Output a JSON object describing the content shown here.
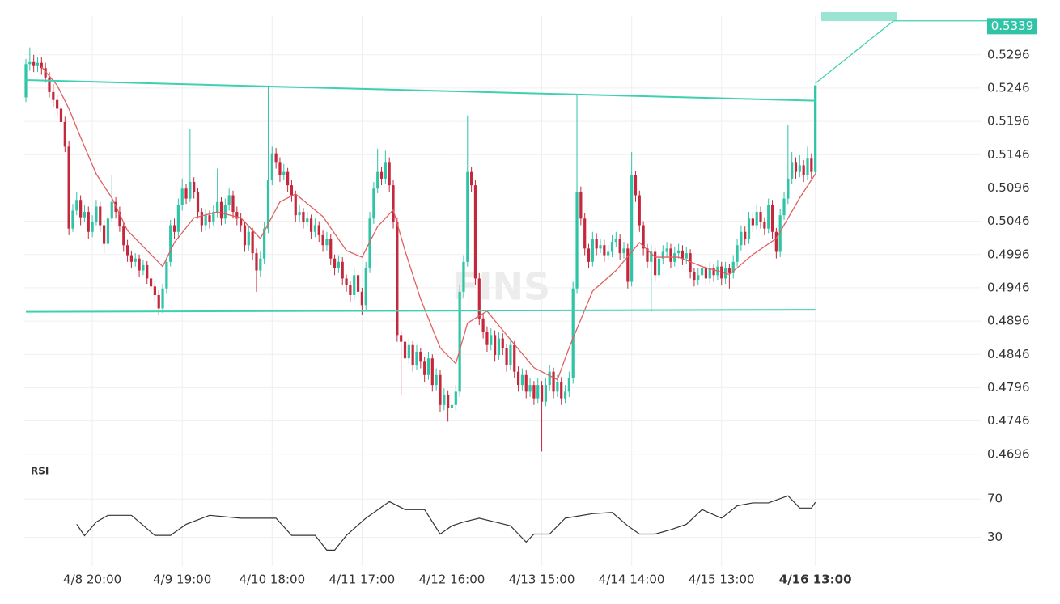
{
  "chart_data": {
    "type": "candlestick",
    "watermark": "FINS",
    "up_color": "#2ec4a5",
    "down_color": "#c5283d",
    "ylim": [
      0.4686,
      0.5354
    ],
    "yticks": [
      0.4696,
      0.4746,
      0.4796,
      0.4846,
      0.4896,
      0.4946,
      0.4996,
      0.5046,
      0.5096,
      0.5146,
      0.5196,
      0.5246,
      0.5296
    ],
    "grid": true,
    "last_price": 0.5339,
    "categories": [
      null,
      null,
      null,
      null,
      null,
      null,
      null,
      null,
      null,
      null,
      null,
      null,
      null,
      null,
      null,
      null,
      null,
      "4/8 20:00",
      null,
      null,
      null,
      null,
      null,
      null,
      null,
      null,
      null,
      null,
      null,
      null,
      null,
      null,
      null,
      null,
      null,
      null,
      null,
      null,
      null,
      null,
      "4/9 19:00",
      null,
      null,
      null,
      null,
      null,
      null,
      null,
      null,
      null,
      null,
      null,
      null,
      null,
      null,
      null,
      null,
      null,
      null,
      null,
      null,
      null,
      null,
      "4/10 18:00",
      null,
      null,
      null,
      null,
      null,
      null,
      null,
      null,
      null,
      null,
      null,
      null,
      null,
      null,
      null,
      null,
      null,
      null,
      null,
      null,
      null,
      null,
      "4/11 17:00",
      null,
      null,
      null,
      null,
      null,
      null,
      null,
      null,
      null,
      null,
      null,
      null,
      null,
      null,
      null,
      null,
      null,
      null,
      null,
      null,
      null,
      null,
      "4/12 16:00",
      null,
      null,
      null,
      null,
      null,
      null,
      null,
      null,
      null,
      null,
      null,
      null,
      null,
      null,
      null,
      null,
      null,
      null,
      null,
      null,
      null,
      null,
      "4/13 15:00",
      null,
      null,
      null,
      null,
      null,
      null,
      null,
      null,
      null,
      null,
      null,
      null,
      null,
      null,
      null,
      null,
      null,
      null,
      null,
      null,
      null,
      null,
      "4/14 14:00",
      null,
      null,
      null,
      null,
      null,
      null,
      null,
      null,
      null,
      null,
      null,
      null,
      null,
      null,
      null,
      null,
      null,
      null,
      null,
      null,
      null,
      null,
      "4/15 13:00",
      null,
      null,
      null,
      null,
      null,
      null,
      null,
      null,
      null,
      null,
      null,
      null,
      null,
      null,
      null,
      null,
      null,
      null,
      null,
      null,
      null,
      null,
      null,
      "4/16 13:00"
    ],
    "open": [
      0.5232,
      0.5282,
      0.5285,
      0.5279,
      0.5284,
      0.5276,
      0.5262,
      0.524,
      0.5228,
      0.5215,
      0.5195,
      0.5158,
      0.5035,
      0.5062,
      0.5078,
      0.5052,
      0.506,
      0.503,
      0.5045,
      0.5068,
      0.504,
      0.5012,
      0.505,
      0.5075,
      0.506,
      0.5038,
      0.501,
      0.4995,
      0.4985,
      0.499,
      0.4972,
      0.498,
      0.496,
      0.4948,
      0.4935,
      0.4915,
      0.4945,
      0.4985,
      0.504,
      0.503,
      0.507,
      0.5095,
      0.508,
      0.5105,
      0.509,
      0.506,
      0.504,
      0.5055,
      0.5045,
      0.506,
      0.5075,
      0.505,
      0.507,
      0.5085,
      0.506,
      0.505,
      0.504,
      0.501,
      0.503,
      0.4998,
      0.4972,
      0.499,
      0.5035,
      0.5108,
      0.5148,
      0.5135,
      0.5115,
      0.512,
      0.51,
      0.5085,
      0.5055,
      0.506,
      0.5045,
      0.505,
      0.503,
      0.504,
      0.5025,
      0.501,
      0.502,
      0.499,
      0.4975,
      0.4985,
      0.496,
      0.495,
      0.4935,
      0.4965,
      0.494,
      0.492,
      0.4975,
      0.505,
      0.5095,
      0.512,
      0.511,
      0.5135,
      0.51,
      0.5045,
      0.4875,
      0.4865,
      0.484,
      0.486,
      0.483,
      0.485,
      0.4835,
      0.4815,
      0.484,
      0.48,
      0.4815,
      0.477,
      0.4785,
      0.4765,
      0.477,
      0.479,
      0.494,
      0.4985,
      0.512,
      0.51,
      0.496,
      0.49,
      0.488,
      0.486,
      0.4875,
      0.4845,
      0.487,
      0.4855,
      0.483,
      0.486,
      0.482,
      0.48,
      0.4815,
      0.479,
      0.48,
      0.478,
      0.48,
      0.4775,
      0.48,
      0.482,
      0.479,
      0.4805,
      0.478,
      0.479,
      0.481,
      0.4945,
      0.509,
      0.505,
      0.5005,
      0.4985,
      0.502,
      0.5005,
      0.501,
      0.4995,
      0.5,
      0.5015,
      0.502,
      0.4998,
      0.5005,
      0.4955,
      0.5115,
      0.5085,
      0.504,
      0.5005,
      0.4985,
      0.5,
      0.4965,
      0.499,
      0.5,
      0.5005,
      0.4985,
      0.4998,
      0.5002,
      0.499,
      0.4998,
      0.497,
      0.4958,
      0.4965,
      0.4975,
      0.496,
      0.4975,
      0.4965,
      0.4978,
      0.496,
      0.4975,
      0.4968,
      0.4985,
      0.501,
      0.503,
      0.502,
      0.505,
      0.504,
      0.506,
      0.5045,
      0.5035,
      0.507,
      0.503,
      0.5,
      0.5055,
      0.508,
      0.511,
      0.5135,
      0.512,
      0.513,
      0.5115,
      0.514,
      0.512
    ],
    "high": [
      0.529,
      0.5307,
      0.5296,
      0.5293,
      0.5292,
      0.5284,
      0.527,
      0.5252,
      0.5236,
      0.5224,
      0.5203,
      0.5166,
      0.5072,
      0.509,
      0.5085,
      0.507,
      0.5068,
      0.5055,
      0.5078,
      0.5075,
      0.5048,
      0.506,
      0.5115,
      0.5082,
      0.5068,
      0.5045,
      0.5018,
      0.5002,
      0.4998,
      0.4996,
      0.4988,
      0.4986,
      0.4966,
      0.4955,
      0.4942,
      0.4952,
      0.4992,
      0.5048,
      0.505,
      0.508,
      0.511,
      0.5102,
      0.5184,
      0.5112,
      0.5096,
      0.5066,
      0.5064,
      0.5062,
      0.507,
      0.5125,
      0.5082,
      0.508,
      0.5095,
      0.5092,
      0.5068,
      0.5058,
      0.5046,
      0.504,
      0.5036,
      0.5005,
      0.5,
      0.5045,
      0.5249,
      0.5158,
      0.5156,
      0.5142,
      0.5132,
      0.5126,
      0.5108,
      0.5092,
      0.507,
      0.5066,
      0.506,
      0.5056,
      0.505,
      0.5046,
      0.5032,
      0.503,
      0.5026,
      0.4996,
      0.4995,
      0.4992,
      0.4966,
      0.4956,
      0.4975,
      0.4972,
      0.4946,
      0.4985,
      0.506,
      0.5105,
      0.5155,
      0.5128,
      0.5152,
      0.5142,
      0.5108,
      0.5052,
      0.4882,
      0.4872,
      0.487,
      0.4866,
      0.486,
      0.4856,
      0.4842,
      0.485,
      0.4846,
      0.4825,
      0.4822,
      0.4795,
      0.4792,
      0.478,
      0.48,
      0.495,
      0.4995,
      0.5205,
      0.5128,
      0.5108,
      0.4968,
      0.4908,
      0.4888,
      0.4885,
      0.4882,
      0.488,
      0.4878,
      0.4862,
      0.487,
      0.4866,
      0.4828,
      0.4825,
      0.4822,
      0.481,
      0.4806,
      0.481,
      0.4806,
      0.481,
      0.483,
      0.4826,
      0.4815,
      0.4812,
      0.48,
      0.482,
      0.4955,
      0.5235,
      0.5098,
      0.5058,
      0.5012,
      0.503,
      0.5028,
      0.502,
      0.5018,
      0.501,
      0.5025,
      0.503,
      0.5026,
      0.5015,
      0.5012,
      0.515,
      0.5122,
      0.5092,
      0.5046,
      0.5012,
      0.501,
      0.5006,
      0.5,
      0.501,
      0.5015,
      0.5012,
      0.5008,
      0.5012,
      0.501,
      0.5008,
      0.5004,
      0.4976,
      0.4975,
      0.4985,
      0.4982,
      0.4985,
      0.4982,
      0.4988,
      0.4985,
      0.4985,
      0.4982,
      0.4995,
      0.502,
      0.504,
      0.5038,
      0.506,
      0.5058,
      0.507,
      0.5068,
      0.5052,
      0.508,
      0.5078,
      0.5036,
      0.5065,
      0.509,
      0.519,
      0.515,
      0.5142,
      0.5145,
      0.5138,
      0.5158,
      0.5148,
      0.525
    ],
    "low": [
      0.5225,
      0.5272,
      0.527,
      0.527,
      0.5266,
      0.5254,
      0.5232,
      0.5218,
      0.5205,
      0.5185,
      0.515,
      0.5025,
      0.503,
      0.5055,
      0.504,
      0.5045,
      0.502,
      0.5022,
      0.504,
      0.503,
      0.4998,
      0.5005,
      0.5045,
      0.505,
      0.503,
      0.5,
      0.4985,
      0.4975,
      0.4978,
      0.4962,
      0.4965,
      0.4952,
      0.494,
      0.4925,
      0.4905,
      0.4908,
      0.4938,
      0.4978,
      0.502,
      0.5022,
      0.5062,
      0.5072,
      0.5075,
      0.508,
      0.505,
      0.503,
      0.5032,
      0.5035,
      0.5038,
      0.5052,
      0.504,
      0.5042,
      0.5062,
      0.505,
      0.504,
      0.503,
      0.5,
      0.5002,
      0.4988,
      0.494,
      0.4962,
      0.4982,
      0.5028,
      0.51,
      0.5125,
      0.5105,
      0.5108,
      0.509,
      0.5075,
      0.5045,
      0.5045,
      0.5035,
      0.5038,
      0.502,
      0.5022,
      0.5015,
      0.5,
      0.5002,
      0.498,
      0.4965,
      0.4968,
      0.495,
      0.494,
      0.4925,
      0.4928,
      0.493,
      0.4905,
      0.4912,
      0.4968,
      0.5042,
      0.5088,
      0.51,
      0.5102,
      0.509,
      0.5035,
      0.4865,
      0.4785,
      0.483,
      0.4832,
      0.482,
      0.4822,
      0.4825,
      0.4805,
      0.4808,
      0.479,
      0.4792,
      0.476,
      0.4762,
      0.4745,
      0.4755,
      0.4762,
      0.4782,
      0.4932,
      0.4978,
      0.509,
      0.495,
      0.489,
      0.487,
      0.485,
      0.4852,
      0.4835,
      0.4838,
      0.4845,
      0.482,
      0.4822,
      0.481,
      0.479,
      0.4792,
      0.478,
      0.4782,
      0.477,
      0.4772,
      0.47,
      0.4768,
      0.4792,
      0.478,
      0.4782,
      0.477,
      0.4772,
      0.4782,
      0.4802,
      0.4938,
      0.504,
      0.4995,
      0.4975,
      0.4978,
      0.4995,
      0.4998,
      0.4985,
      0.4988,
      0.4992,
      0.5008,
      0.4988,
      0.499,
      0.4945,
      0.4948,
      0.5075,
      0.503,
      0.4995,
      0.4975,
      0.491,
      0.4955,
      0.4958,
      0.4982,
      0.4992,
      0.4975,
      0.4978,
      0.499,
      0.498,
      0.4982,
      0.496,
      0.4948,
      0.495,
      0.4958,
      0.495,
      0.4952,
      0.4955,
      0.4958,
      0.495,
      0.4952,
      0.4945,
      0.496,
      0.4978,
      0.5002,
      0.501,
      0.5012,
      0.503,
      0.5032,
      0.5035,
      0.5025,
      0.5028,
      0.502,
      0.499,
      0.4992,
      0.5048,
      0.5072,
      0.5102,
      0.511,
      0.5112,
      0.5105,
      0.5108,
      0.511,
      0.5115
    ],
    "close": [
      0.5282,
      0.5285,
      0.5279,
      0.5284,
      0.5276,
      0.5262,
      0.524,
      0.5228,
      0.5215,
      0.5195,
      0.5158,
      0.5035,
      0.5062,
      0.5078,
      0.5052,
      0.506,
      0.503,
      0.5045,
      0.5068,
      0.504,
      0.5012,
      0.505,
      0.5075,
      0.506,
      0.5038,
      0.501,
      0.4995,
      0.4985,
      0.499,
      0.4972,
      0.498,
      0.496,
      0.4948,
      0.4935,
      0.4915,
      0.4945,
      0.4985,
      0.504,
      0.503,
      0.507,
      0.5095,
      0.508,
      0.5105,
      0.509,
      0.506,
      0.504,
      0.5055,
      0.5045,
      0.506,
      0.5075,
      0.505,
      0.507,
      0.5085,
      0.506,
      0.505,
      0.504,
      0.501,
      0.503,
      0.4998,
      0.4972,
      0.499,
      0.5035,
      0.5108,
      0.5148,
      0.5135,
      0.5115,
      0.512,
      0.51,
      0.5085,
      0.5055,
      0.506,
      0.5045,
      0.505,
      0.503,
      0.504,
      0.5025,
      0.501,
      0.502,
      0.499,
      0.4975,
      0.4985,
      0.496,
      0.495,
      0.4935,
      0.4965,
      0.494,
      0.492,
      0.4975,
      0.505,
      0.5095,
      0.512,
      0.511,
      0.5135,
      0.51,
      0.5045,
      0.4875,
      0.4865,
      0.484,
      0.486,
      0.483,
      0.485,
      0.4835,
      0.4815,
      0.484,
      0.48,
      0.4815,
      0.477,
      0.4785,
      0.4765,
      0.477,
      0.479,
      0.494,
      0.4985,
      0.512,
      0.51,
      0.496,
      0.49,
      0.488,
      0.486,
      0.4875,
      0.4845,
      0.487,
      0.4855,
      0.483,
      0.486,
      0.482,
      0.48,
      0.4815,
      0.479,
      0.48,
      0.478,
      0.48,
      0.4775,
      0.48,
      0.482,
      0.479,
      0.4805,
      0.478,
      0.479,
      0.481,
      0.4945,
      0.509,
      0.505,
      0.5005,
      0.4985,
      0.502,
      0.5005,
      0.501,
      0.4995,
      0.5,
      0.5015,
      0.502,
      0.4998,
      0.5005,
      0.4955,
      0.5115,
      0.5085,
      0.504,
      0.5005,
      0.4985,
      0.5,
      0.4965,
      0.499,
      0.5,
      0.5005,
      0.4985,
      0.4998,
      0.5002,
      0.499,
      0.4998,
      0.497,
      0.4958,
      0.4965,
      0.4975,
      0.496,
      0.4975,
      0.4965,
      0.4978,
      0.496,
      0.4975,
      0.4968,
      0.4985,
      0.501,
      0.503,
      0.502,
      0.505,
      0.504,
      0.506,
      0.5045,
      0.5035,
      0.507,
      0.503,
      0.5,
      0.5055,
      0.508,
      0.511,
      0.5135,
      0.512,
      0.513,
      0.5115,
      0.514,
      0.512,
      0.525
    ],
    "ma": {
      "color": "#e06060",
      "x": [
        4,
        8,
        11,
        14,
        18,
        22,
        26,
        31,
        35,
        38,
        43,
        49,
        55,
        60,
        65,
        69,
        76,
        82,
        86,
        90,
        94,
        97,
        101,
        106,
        110,
        113,
        118,
        124,
        130,
        136,
        139,
        145,
        151,
        157,
        161,
        167,
        173,
        180,
        186,
        192,
        198,
        202
      ],
      "values": [
        0.5278,
        0.525,
        0.5215,
        0.5172,
        0.5117,
        0.5081,
        0.5032,
        0.5002,
        0.4978,
        0.5014,
        0.5051,
        0.506,
        0.5051,
        0.502,
        0.5075,
        0.5087,
        0.5053,
        0.5002,
        0.4992,
        0.5038,
        0.5063,
        0.5002,
        0.4929,
        0.4856,
        0.4832,
        0.4893,
        0.4911,
        0.4868,
        0.4826,
        0.4808,
        0.4856,
        0.4941,
        0.4972,
        0.5014,
        0.4992,
        0.4992,
        0.4978,
        0.4966,
        0.4996,
        0.502,
        0.5081,
        0.5117
      ]
    },
    "trendlines": [
      {
        "color": "#3fd0b0",
        "x": [
          0,
          202
        ],
        "values": [
          0.5258,
          0.5227
        ]
      },
      {
        "color": "#3fd0b0",
        "x": [
          0,
          202
        ],
        "values": [
          0.491,
          0.4913
        ]
      },
      {
        "color": "#3fd0b0",
        "x": [
          202,
          222
        ],
        "values": [
          0.5253,
          0.5347
        ]
      },
      {
        "color": "#3fd0b0",
        "x": [
          222,
          246
        ],
        "values": [
          0.5347,
          0.5347
        ]
      }
    ],
    "rsi": {
      "name": "RSI",
      "color": "#333333",
      "ylim": [
        0,
        93
      ],
      "yticks": [
        30,
        70
      ],
      "x": [
        13,
        15,
        18,
        21,
        27,
        29,
        33,
        37,
        41,
        47,
        55,
        64,
        68,
        74,
        77,
        79,
        82,
        87,
        93,
        97,
        102,
        106,
        109,
        112,
        116,
        120,
        124,
        128,
        130,
        134,
        138,
        145,
        150,
        154,
        157,
        161,
        165,
        169,
        173,
        178,
        182,
        186,
        190,
        195,
        198,
        201,
        202
      ],
      "values": [
        43.6,
        31.7,
        46,
        53,
        53,
        46,
        32,
        32,
        43.6,
        53,
        50,
        50,
        32,
        32,
        16.6,
        16.6,
        32,
        50,
        67.4,
        59,
        59,
        33.4,
        42,
        46,
        50,
        46,
        42,
        25,
        33.4,
        33.4,
        50,
        54.7,
        56,
        42,
        33.4,
        33.4,
        38,
        43.6,
        59,
        50,
        63,
        66,
        66,
        73.4,
        60.6,
        60.6,
        66.6
      ]
    }
  }
}
